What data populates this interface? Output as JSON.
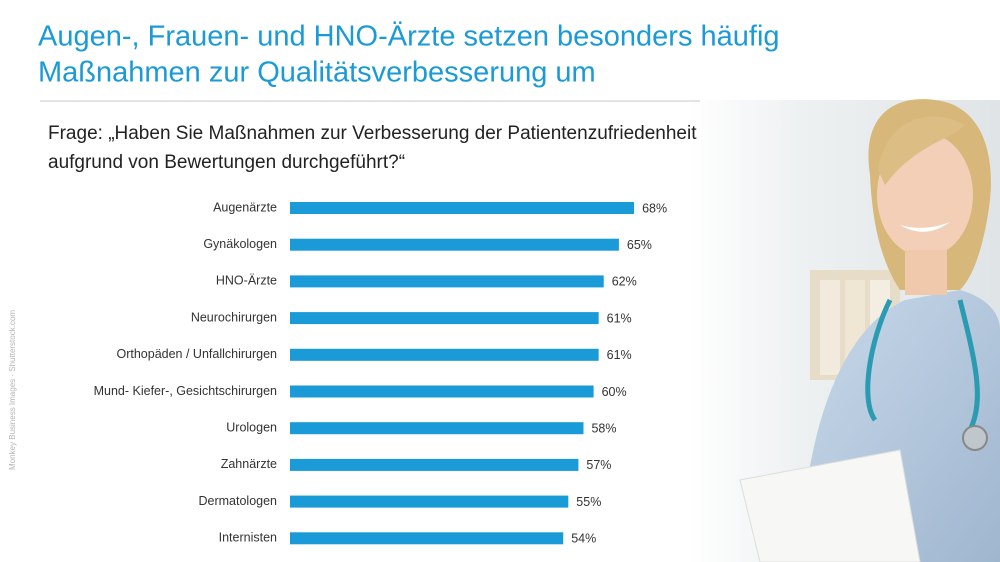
{
  "chart_data": {
    "type": "bar",
    "orientation": "horizontal",
    "title": [
      "Augen-, Frauen- und HNO-Ärzte setzen besonders häufig",
      "Maßnahmen zur Qualitätsverbesserung um"
    ],
    "subtitle": [
      "Frage: „Haben Sie Maßnahmen zur Verbesserung der Patientenzufriedenheit",
      "aufgrund von Bewertungen durchgeführt?“"
    ],
    "credit": "Monkey Business Images · Shutterstock.com",
    "categories": [
      "Augenärzte",
      "Gynäkologen",
      "HNO-Ärzte",
      "Neurochirurgen",
      "Orthopäden / Unfallchirurgen",
      "Mund- Kiefer-, Gesichtschirurgen",
      "Urologen",
      "Zahnärzte",
      "Dermatologen",
      "Internisten"
    ],
    "values": [
      68,
      65,
      62,
      61,
      61,
      60,
      58,
      57,
      55,
      54
    ],
    "value_labels": [
      "68%",
      "65%",
      "62%",
      "61%",
      "61%",
      "60%",
      "58%",
      "57%",
      "55%",
      "54%"
    ],
    "color": "#1a9ad6"
  }
}
